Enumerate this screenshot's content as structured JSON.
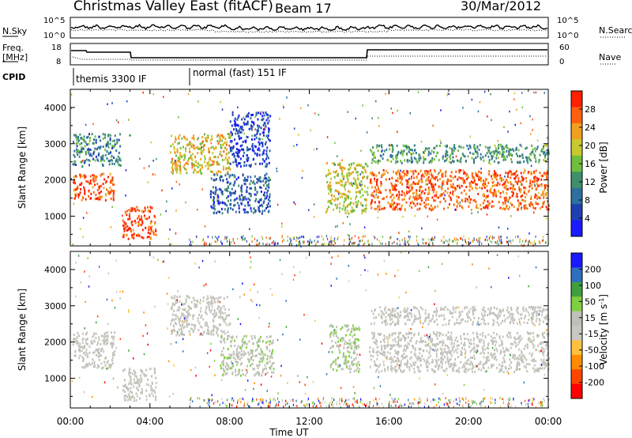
{
  "header": {
    "title": "Christmas Valley East (fitACF)",
    "beam": "Beam 17",
    "date": "30/Mar/2012"
  },
  "nsky_panel": {
    "left_label": "N.Sky",
    "left_ticks": [
      "10^5",
      "10^0"
    ],
    "right_label": "N.Search",
    "right_ticks": [
      "10^5",
      "10^0"
    ]
  },
  "freq_panel": {
    "left_label_1": "Freq.",
    "left_label_2": "[MHz]",
    "left_ticks": [
      "18",
      "8"
    ],
    "right_label": "Nave",
    "right_ticks": [
      "60",
      "0"
    ]
  },
  "cpid": {
    "label": "CPID",
    "modes": [
      "themis 3300 IF",
      "normal (fast) 151 IF"
    ]
  },
  "colors": {
    "frame": "#000000",
    "power_scale": [
      "#1a1aff",
      "#1f3fb0",
      "#2e6f9e",
      "#3f8f6a",
      "#6fbf3f",
      "#c8c830",
      "#f0a020",
      "#ff6010",
      "#ff2000"
    ],
    "velocity_scale": [
      "#ff0000",
      "#ff4500",
      "#ff8c00",
      "#ffc040",
      "#c8c8c0",
      "#c0c0b8",
      "#7fd040",
      "#3f9f3f",
      "#2f6fbf",
      "#1a1aff"
    ]
  },
  "chart_data": [
    {
      "type": "heatmap",
      "name_on_chart": "Power [dB]",
      "ylabel": "Slant Range [km]",
      "xlabel": "Time UT",
      "x_ticks": [
        "00:00",
        "04:00",
        "08:00",
        "12:00",
        "16:00",
        "20:00",
        "00:00"
      ],
      "x_range_hours": [
        0,
        24
      ],
      "y_ticks": [
        1000,
        2000,
        3000,
        4000
      ],
      "ylim": [
        180,
        4500
      ],
      "colorbar_label": "Power [dB]",
      "colorbar_ticks": [
        "28",
        "24",
        "20",
        "16",
        "12",
        "8",
        "4"
      ],
      "colorbar_range": [
        0,
        30
      ],
      "echo_regions": [
        {
          "t0": 0.1,
          "t1": 2.2,
          "r0": 1450,
          "r1": 2200,
          "level": 26
        },
        {
          "t0": 0.1,
          "t1": 2.5,
          "r0": 2400,
          "r1": 3300,
          "level": 10
        },
        {
          "t0": 2.6,
          "t1": 4.3,
          "r0": 400,
          "r1": 1300,
          "level": 27
        },
        {
          "t0": 5.0,
          "t1": 8.0,
          "r0": 2200,
          "r1": 3300,
          "level": 19
        },
        {
          "t0": 7.0,
          "t1": 10.0,
          "r0": 1100,
          "r1": 2200,
          "level": 7
        },
        {
          "t0": 8.0,
          "t1": 10.0,
          "r0": 2400,
          "r1": 3900,
          "level": 5
        },
        {
          "t0": 12.8,
          "t1": 14.9,
          "r0": 1100,
          "r1": 2500,
          "level": 18
        },
        {
          "t0": 15.0,
          "t1": 24.0,
          "r0": 1200,
          "r1": 2300,
          "level": 25
        },
        {
          "t0": 15.0,
          "t1": 24.0,
          "r0": 2500,
          "r1": 3000,
          "level": 12
        }
      ]
    },
    {
      "type": "heatmap",
      "name_on_chart": "Velocity [m s^-1]",
      "ylabel": "Slant Range [km]",
      "xlabel": "Time UT",
      "x_ticks": [
        "00:00",
        "04:00",
        "08:00",
        "12:00",
        "16:00",
        "20:00",
        "00:00"
      ],
      "x_range_hours": [
        0,
        24
      ],
      "y_ticks": [
        1000,
        2000,
        3000,
        4000
      ],
      "ylim": [
        180,
        4500
      ],
      "colorbar_label": "Velocity [m s",
      "colorbar_label_sup": "-1",
      "colorbar_label_end": "]",
      "colorbar_ticks": [
        "200",
        "100",
        "50",
        "15",
        "-15",
        "-50",
        "-100",
        "-200"
      ],
      "colorbar_range": [
        -250,
        250
      ],
      "echo_regions": [
        {
          "t0": 0.1,
          "t1": 2.2,
          "r0": 1300,
          "r1": 2300,
          "level": 0
        },
        {
          "t0": 2.6,
          "t1": 4.3,
          "r0": 400,
          "r1": 1300,
          "level": 0
        },
        {
          "t0": 5.0,
          "t1": 8.0,
          "r0": 2200,
          "r1": 3300,
          "level": 0
        },
        {
          "t0": 7.5,
          "t1": 10.2,
          "r0": 1100,
          "r1": 2200,
          "level": 40
        },
        {
          "t0": 13.0,
          "t1": 14.5,
          "r0": 1200,
          "r1": 2500,
          "level": 45
        },
        {
          "t0": 15.0,
          "t1": 24.0,
          "r0": 1200,
          "r1": 2300,
          "level": 0
        },
        {
          "t0": 15.0,
          "t1": 24.0,
          "r0": 2500,
          "r1": 3000,
          "level": 0
        }
      ]
    }
  ]
}
